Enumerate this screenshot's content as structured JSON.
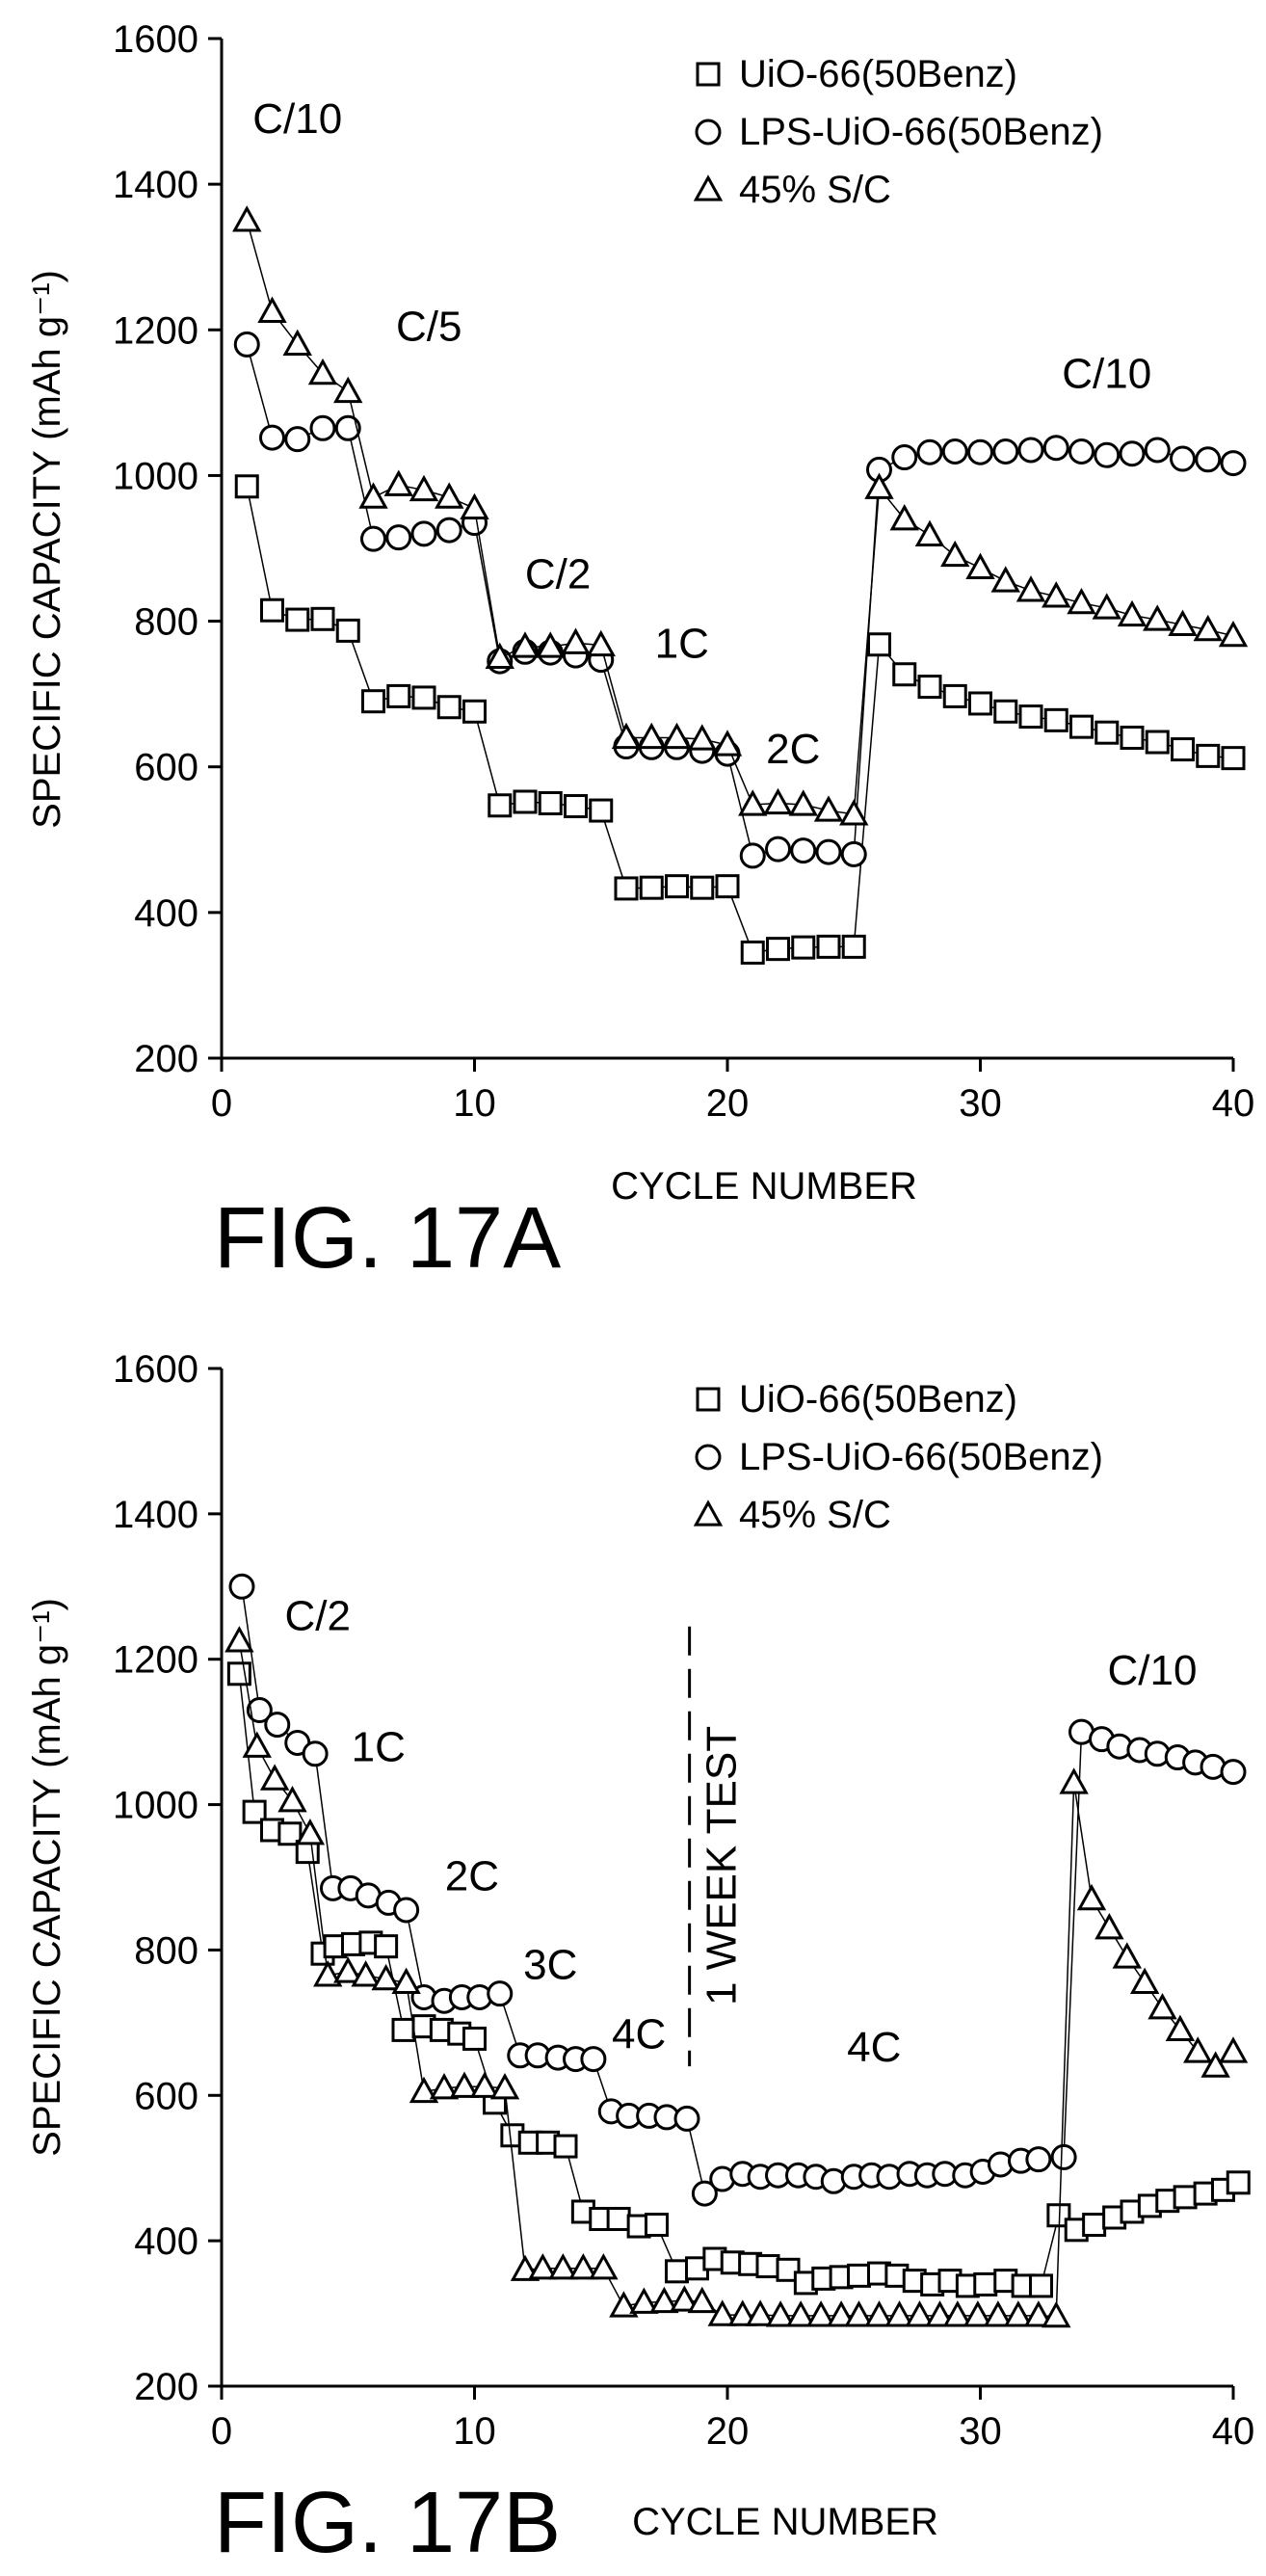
{
  "figure_labels": [
    "FIG. 17A",
    "FIG. 17B"
  ],
  "chart_data": [
    {
      "type": "scatter",
      "figure_label": "FIG. 17A",
      "xlabel": "CYCLE NUMBER",
      "ylabel": "SPECIFIC CAPACITY (mAh g⁻¹)",
      "xlim": [
        0,
        40
      ],
      "ylim": [
        200,
        1600
      ],
      "xticks": [
        0,
        10,
        20,
        30,
        40
      ],
      "yticks": [
        200,
        400,
        600,
        800,
        1000,
        1200,
        1400,
        1600
      ],
      "legend_position": "top-right",
      "series": [
        {
          "name": "UiO-66(50Benz)",
          "marker": "square",
          "x": [
            1,
            2,
            3,
            4,
            5,
            6,
            7,
            8,
            9,
            10,
            11,
            12,
            13,
            14,
            15,
            16,
            17,
            18,
            19,
            20,
            21,
            22,
            23,
            24,
            25,
            26,
            27,
            28,
            29,
            30,
            31,
            32,
            33,
            34,
            35,
            36,
            37,
            38,
            39,
            40
          ],
          "y": [
            985,
            815,
            802,
            803,
            787,
            690,
            697,
            695,
            682,
            676,
            547,
            552,
            550,
            546,
            540,
            433,
            434,
            436,
            434,
            436,
            345,
            350,
            352,
            353,
            353,
            768,
            727,
            710,
            697,
            687,
            676,
            669,
            664,
            655,
            647,
            640,
            634,
            624,
            615,
            612
          ]
        },
        {
          "name": "LPS-UiO-66(50Benz)",
          "marker": "circle",
          "x": [
            1,
            2,
            3,
            4,
            5,
            6,
            7,
            8,
            9,
            10,
            11,
            12,
            13,
            14,
            15,
            16,
            17,
            18,
            19,
            20,
            21,
            22,
            23,
            24,
            25,
            26,
            27,
            28,
            29,
            30,
            31,
            32,
            33,
            34,
            35,
            36,
            37,
            38,
            39,
            40
          ],
          "y": [
            1180,
            1052,
            1050,
            1065,
            1065,
            913,
            915,
            920,
            925,
            935,
            745,
            758,
            757,
            753,
            747,
            628,
            627,
            627,
            622,
            618,
            478,
            487,
            485,
            483,
            480,
            1008,
            1025,
            1032,
            1033,
            1032,
            1033,
            1035,
            1038,
            1033,
            1028,
            1030,
            1035,
            1023,
            1022,
            1017
          ]
        },
        {
          "name": "45% S/C",
          "marker": "triangle",
          "x": [
            1,
            2,
            3,
            4,
            5,
            6,
            7,
            8,
            9,
            10,
            11,
            12,
            13,
            14,
            15,
            16,
            17,
            18,
            19,
            20,
            21,
            22,
            23,
            24,
            25,
            26,
            27,
            28,
            29,
            30,
            31,
            32,
            33,
            34,
            35,
            36,
            37,
            38,
            39,
            40
          ],
          "y": [
            1350,
            1225,
            1180,
            1140,
            1115,
            970,
            987,
            980,
            970,
            955,
            750,
            765,
            765,
            770,
            767,
            640,
            640,
            640,
            638,
            630,
            548,
            550,
            548,
            540,
            535,
            983,
            940,
            918,
            890,
            873,
            855,
            842,
            834,
            825,
            818,
            808,
            802,
            795,
            788,
            780
          ]
        }
      ],
      "annotations": [
        {
          "text": "C/10",
          "x": 3,
          "y": 1470
        },
        {
          "text": "C/5",
          "x": 8.2,
          "y": 1185
        },
        {
          "text": "C/2",
          "x": 13.3,
          "y": 845
        },
        {
          "text": "1C",
          "x": 18.2,
          "y": 750
        },
        {
          "text": "2C",
          "x": 22.6,
          "y": 605
        },
        {
          "text": "C/10",
          "x": 35,
          "y": 1120
        }
      ]
    },
    {
      "type": "scatter",
      "figure_label": "FIG. 17B",
      "xlabel": "CYCLE NUMBER",
      "ylabel": "SPECIFIC CAPACITY (mAh g⁻¹)",
      "xlim": [
        0,
        40
      ],
      "ylim": [
        200,
        1600
      ],
      "xticks": [
        0,
        10,
        20,
        30,
        40
      ],
      "yticks": [
        200,
        400,
        600,
        800,
        1000,
        1200,
        1400,
        1600
      ],
      "legend_position": "top-right",
      "series": [
        {
          "name": "UiO-66(50Benz)",
          "marker": "square",
          "x": [
            0.7,
            1.3,
            2,
            2.7,
            3.4,
            4,
            4.5,
            5.2,
            5.9,
            6.5,
            7.2,
            8,
            8.7,
            9.4,
            10,
            10.8,
            11.5,
            12.2,
            12.9,
            13.6,
            14.3,
            15,
            15.7,
            16.5,
            17.2,
            18,
            18.8,
            19.5,
            20.2,
            20.9,
            21.6,
            22.4,
            23.1,
            23.8,
            24.5,
            25.2,
            26,
            26.7,
            27.4,
            28.1,
            28.8,
            29.5,
            30.2,
            31,
            31.7,
            32.4,
            33.1,
            33.8,
            34.5,
            35.3,
            36,
            36.7,
            37.4,
            38.1,
            38.9,
            39.6,
            40.2
          ],
          "y": [
            1180,
            990,
            965,
            960,
            935,
            795,
            805,
            808,
            810,
            805,
            690,
            695,
            690,
            685,
            678,
            590,
            545,
            535,
            535,
            530,
            440,
            430,
            430,
            420,
            422,
            358,
            362,
            375,
            370,
            368,
            365,
            360,
            342,
            348,
            350,
            352,
            355,
            352,
            345,
            340,
            345,
            338,
            340,
            345,
            338,
            338,
            435,
            415,
            422,
            432,
            440,
            448,
            455,
            460,
            465,
            470,
            480
          ]
        },
        {
          "name": "LPS-UiO-66(50Benz)",
          "marker": "circle",
          "x": [
            0.8,
            1.5,
            2.2,
            3,
            3.7,
            4.4,
            5.1,
            5.8,
            6.6,
            7.3,
            8,
            8.8,
            9.5,
            10.2,
            11,
            11.8,
            12.5,
            13.3,
            14,
            14.7,
            15.4,
            16.1,
            16.9,
            17.6,
            18.4,
            19.1,
            19.8,
            20.6,
            21.3,
            22,
            22.8,
            23.5,
            24.2,
            25,
            25.7,
            26.4,
            27.2,
            27.9,
            28.6,
            29.4,
            30.1,
            30.8,
            31.6,
            32.3,
            33.3,
            34,
            34.8,
            35.5,
            36.3,
            37,
            37.8,
            38.5,
            39.2,
            40
          ],
          "y": [
            1300,
            1130,
            1110,
            1085,
            1070,
            885,
            885,
            875,
            865,
            855,
            735,
            730,
            735,
            735,
            740,
            655,
            655,
            652,
            650,
            650,
            578,
            572,
            572,
            570,
            568,
            465,
            485,
            492,
            488,
            490,
            490,
            488,
            482,
            488,
            490,
            488,
            492,
            490,
            492,
            490,
            495,
            505,
            510,
            512,
            515,
            1100,
            1090,
            1080,
            1075,
            1070,
            1065,
            1058,
            1052,
            1045
          ]
        },
        {
          "name": "45% S/C",
          "marker": "triangle",
          "x": [
            0.7,
            1.4,
            2.1,
            2.8,
            3.5,
            4.2,
            5,
            5.7,
            6.5,
            7.3,
            8,
            8.8,
            9.6,
            10.4,
            11.2,
            12,
            12.7,
            13.5,
            14.3,
            15.1,
            15.9,
            16.7,
            17.5,
            18.3,
            19,
            19.8,
            20.6,
            21.3,
            22.1,
            22.9,
            23.7,
            24.5,
            25.2,
            26,
            26.8,
            27.6,
            28.4,
            29.1,
            29.9,
            30.7,
            31.5,
            32.3,
            33,
            33.7,
            34.4,
            35.1,
            35.8,
            36.5,
            37.2,
            37.9,
            38.6,
            39.3,
            40
          ],
          "y": [
            1225,
            1080,
            1035,
            1005,
            960,
            765,
            770,
            765,
            760,
            755,
            605,
            610,
            612,
            612,
            610,
            360,
            362,
            362,
            362,
            362,
            310,
            315,
            316,
            318,
            316,
            298,
            298,
            298,
            297,
            297,
            297,
            297,
            297,
            297,
            297,
            297,
            297,
            297,
            297,
            297,
            297,
            297,
            296,
            1030,
            870,
            830,
            790,
            755,
            720,
            690,
            660,
            640,
            660
          ]
        }
      ],
      "annotations": [
        {
          "text": "C/2",
          "x": 3.8,
          "y": 1240
        },
        {
          "text": "1C",
          "x": 6.2,
          "y": 1060
        },
        {
          "text": "2C",
          "x": 9.9,
          "y": 882
        },
        {
          "text": "3C",
          "x": 13,
          "y": 760
        },
        {
          "text": "4C",
          "x": 16.5,
          "y": 665
        },
        {
          "text": "4C",
          "x": 25.8,
          "y": 647
        },
        {
          "text": "C/10",
          "x": 36.8,
          "y": 1165
        }
      ],
      "vertical_marker": {
        "x": 18.5,
        "y_range": [
          640,
          1245
        ],
        "label": "1 WEEK TEST"
      }
    }
  ]
}
